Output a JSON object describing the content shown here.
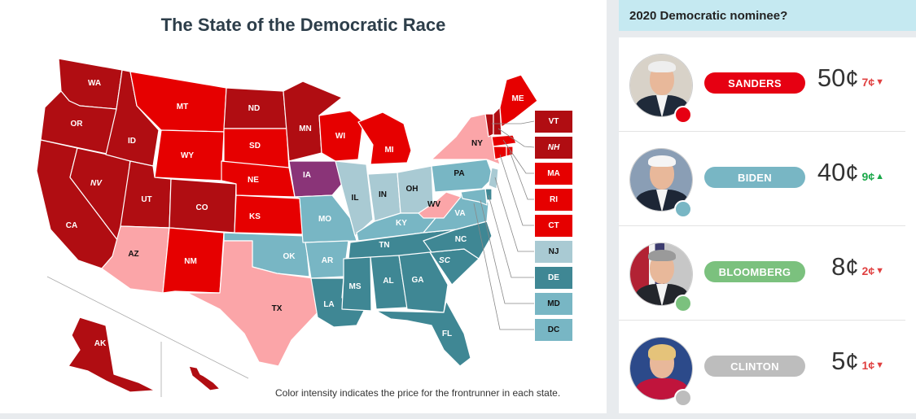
{
  "map": {
    "title": "The State of the Democratic Race",
    "caption": "Color intensity indicates the price for the frontrunner in each state.",
    "colors": {
      "sanders_dark": "#b00d12",
      "sanders_mid": "#e60000",
      "sanders_light": "#fba5a8",
      "biden_dark": "#3f8794",
      "biden_mid": "#78b6c4",
      "biden_light": "#a9cad3",
      "buttigieg": "#8a3478"
    },
    "states": {
      "WA": "WA",
      "OR": "OR",
      "CA": "CA",
      "NV": "NV",
      "ID": "ID",
      "MT": "MT",
      "WY": "WY",
      "UT": "UT",
      "AZ": "AZ",
      "CO": "CO",
      "NM": "NM",
      "ND": "ND",
      "SD": "SD",
      "NE": "NE",
      "KS": "KS",
      "OK": "OK",
      "TX": "TX",
      "MN": "MN",
      "IA": "IA",
      "MO": "MO",
      "AR": "AR",
      "LA": "LA",
      "WI": "WI",
      "IL": "IL",
      "MI": "MI",
      "IN": "IN",
      "OH": "OH",
      "KY": "KY",
      "TN": "TN",
      "MS": "MS",
      "AL": "AL",
      "GA": "GA",
      "FL": "FL",
      "SC": "SC",
      "NC": "NC",
      "VA": "VA",
      "WV": "WV",
      "PA": "PA",
      "NY": "NY",
      "ME": "ME",
      "AK": "AK"
    },
    "northeast": [
      {
        "code": "VT",
        "color": "#b00d12",
        "italic": false
      },
      {
        "code": "NH",
        "color": "#b00d12",
        "italic": true
      },
      {
        "code": "MA",
        "color": "#e60000",
        "italic": false
      },
      {
        "code": "RI",
        "color": "#e60000",
        "italic": false
      },
      {
        "code": "CT",
        "color": "#e60000",
        "italic": false
      },
      {
        "code": "NJ",
        "color": "#a9cad3",
        "italic": false
      },
      {
        "code": "DE",
        "color": "#3f8794",
        "italic": false
      },
      {
        "code": "MD",
        "color": "#78b6c4",
        "italic": false
      },
      {
        "code": "DC",
        "color": "#78b6c4",
        "italic": false
      }
    ]
  },
  "market": {
    "question": "2020 Democratic nominee?",
    "candidates": [
      {
        "name": "SANDERS",
        "price": "50",
        "cent": "¢",
        "change": "7¢",
        "direction": "down",
        "pill_color": "#e60012",
        "dot_color": "#e60012",
        "change_color": "#e04040"
      },
      {
        "name": "BIDEN",
        "price": "40",
        "cent": "¢",
        "change": "9¢",
        "direction": "up",
        "pill_color": "#78b6c4",
        "dot_color": "#78b6c4",
        "change_color": "#1aa849"
      },
      {
        "name": "BLOOMBERG",
        "price": "8",
        "cent": "¢",
        "change": "2¢",
        "direction": "down",
        "pill_color": "#7bc17e",
        "dot_color": "#7bc17e",
        "change_color": "#e04040"
      },
      {
        "name": "CLINTON",
        "price": "5",
        "cent": "¢",
        "change": "1¢",
        "direction": "down",
        "pill_color": "#bdbdbd",
        "dot_color": "#bdbdbd",
        "change_color": "#e04040"
      }
    ]
  }
}
